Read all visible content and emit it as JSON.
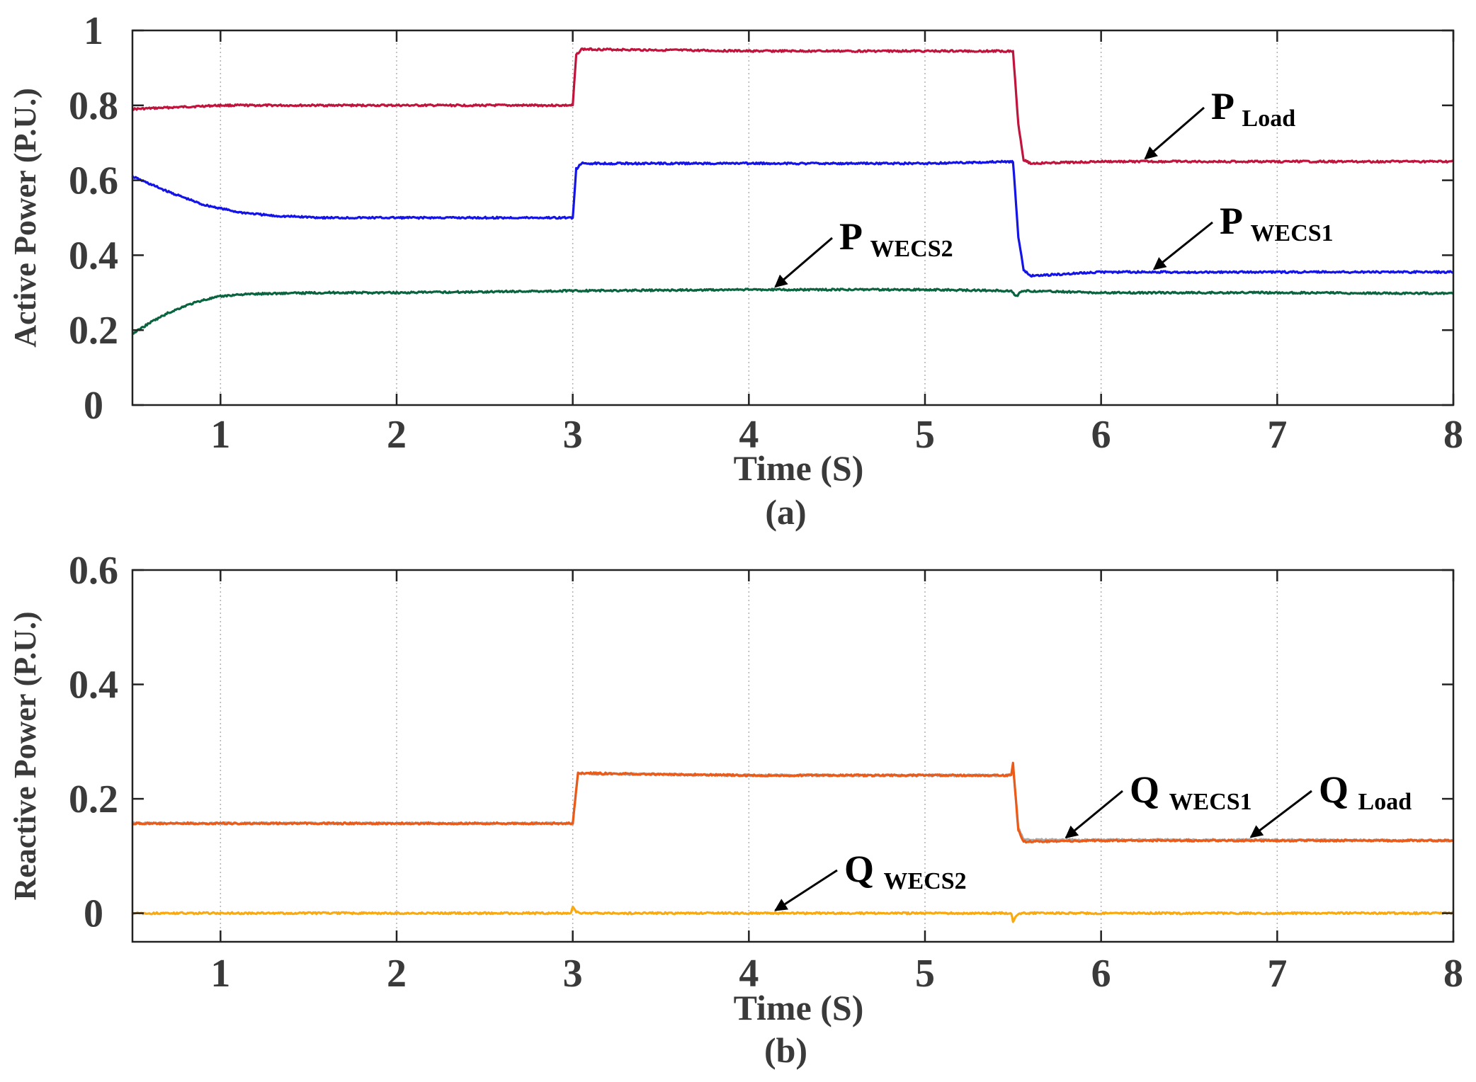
{
  "chart_data": [
    {
      "type": "line",
      "panel": "(a)",
      "xlabel": "Time (S)",
      "ylabel": "Active Power (P.U.)",
      "xlim": [
        0.5,
        8
      ],
      "ylim": [
        0,
        1
      ],
      "xticks": [
        1,
        2,
        3,
        4,
        5,
        6,
        7,
        8
      ],
      "yticks": [
        0,
        0.2,
        0.4,
        0.6,
        0.8,
        1
      ],
      "ytick_labels": [
        "0",
        "0.2",
        "0.4",
        "0.6",
        "0.8",
        "1"
      ],
      "grid": "vertical dotted",
      "series": [
        {
          "name": "P Load",
          "color": "#c0143c",
          "x": [
            0.5,
            1,
            2,
            2.99,
            3.0,
            3.02,
            3.05,
            4,
            5,
            5.49,
            5.5,
            5.53,
            5.56,
            5.6,
            6,
            7,
            8
          ],
          "y": [
            0.79,
            0.8,
            0.8,
            0.8,
            0.8,
            0.935,
            0.95,
            0.945,
            0.945,
            0.945,
            0.945,
            0.75,
            0.655,
            0.645,
            0.65,
            0.65,
            0.65
          ]
        },
        {
          "name": "P WECS1",
          "color": "#1414e6",
          "x": [
            0.5,
            0.7,
            0.9,
            1.1,
            1.3,
            1.6,
            2,
            2.99,
            3.0,
            3.02,
            3.05,
            4,
            5,
            5.49,
            5.5,
            5.53,
            5.56,
            5.6,
            6,
            7,
            8
          ],
          "y": [
            0.61,
            0.57,
            0.535,
            0.515,
            0.505,
            0.5,
            0.5,
            0.5,
            0.5,
            0.63,
            0.645,
            0.645,
            0.645,
            0.65,
            0.65,
            0.45,
            0.36,
            0.345,
            0.355,
            0.355,
            0.355
          ]
        },
        {
          "name": "P WECS2",
          "color": "#0a6440",
          "x": [
            0.5,
            0.6,
            0.7,
            0.8,
            0.9,
            1.0,
            1.1,
            1.3,
            1.6,
            2,
            3,
            4,
            5,
            5.49,
            5.52,
            5.55,
            6,
            7,
            8
          ],
          "y": [
            0.19,
            0.22,
            0.245,
            0.265,
            0.28,
            0.29,
            0.295,
            0.298,
            0.3,
            0.3,
            0.305,
            0.308,
            0.308,
            0.305,
            0.29,
            0.305,
            0.3,
            0.3,
            0.298
          ]
        }
      ],
      "annotations": [
        {
          "main": "P",
          "sub": "Load",
          "target": [
            6.25,
            0.65
          ]
        },
        {
          "main": "P",
          "sub": "WECS1",
          "target": [
            6.3,
            0.355
          ]
        },
        {
          "main": "P",
          "sub": "WECS2",
          "target": [
            4.15,
            0.308
          ]
        }
      ]
    },
    {
      "type": "line",
      "panel": "(b)",
      "xlabel": "Time (S)",
      "ylabel": "Reactive Power (P.U.)",
      "xlim": [
        0.5,
        8
      ],
      "ylim": [
        -0.05,
        0.6
      ],
      "xticks": [
        1,
        2,
        3,
        4,
        5,
        6,
        7,
        8
      ],
      "yticks": [
        0,
        0.2,
        0.4,
        0.6
      ],
      "ytick_labels": [
        "0",
        "0.2",
        "0.4",
        "0.6"
      ],
      "grid": "vertical dotted",
      "series": [
        {
          "name": "Q Load",
          "color": "#a8a8a8",
          "x": [
            0.5,
            1,
            2,
            2.99,
            3.0,
            3.03,
            4,
            5,
            5.49,
            5.5,
            5.53,
            5.56,
            6,
            7,
            8
          ],
          "y": [
            0.157,
            0.157,
            0.157,
            0.157,
            0.157,
            0.244,
            0.241,
            0.241,
            0.241,
            0.26,
            0.15,
            0.128,
            0.128,
            0.128,
            0.127
          ]
        },
        {
          "name": "Q WECS1",
          "color": "#ec5a18",
          "x": [
            0.5,
            1,
            2,
            2.99,
            3.0,
            3.03,
            4,
            5,
            5.49,
            5.5,
            5.53,
            5.56,
            6,
            7,
            8
          ],
          "y": [
            0.157,
            0.157,
            0.157,
            0.157,
            0.157,
            0.245,
            0.241,
            0.241,
            0.241,
            0.262,
            0.145,
            0.125,
            0.127,
            0.127,
            0.127
          ]
        },
        {
          "name": "Q WECS2",
          "color": "#f8aa10",
          "x": [
            0.5,
            1,
            2,
            2.99,
            3.0,
            3.02,
            3.05,
            4,
            5,
            5.49,
            5.5,
            5.52,
            5.55,
            6,
            7,
            8
          ],
          "y": [
            0.0,
            0.0,
            0.0,
            0.0,
            0.01,
            0.002,
            0.0,
            0.0,
            0.0,
            0.0,
            -0.015,
            -0.004,
            0.0,
            0.0,
            0.0,
            0.0
          ]
        }
      ],
      "annotations": [
        {
          "main": "Q",
          "sub": "WECS1",
          "target": [
            5.8,
            0.127
          ]
        },
        {
          "main": "Q",
          "sub": "Load",
          "target": [
            6.85,
            0.128
          ]
        },
        {
          "main": "Q",
          "sub": "WECS2",
          "target": [
            4.15,
            0.0
          ]
        }
      ]
    }
  ]
}
